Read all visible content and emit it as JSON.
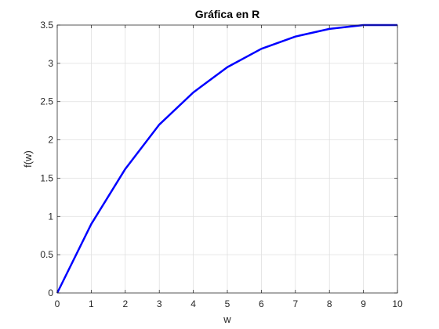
{
  "chart_data": {
    "type": "line",
    "title": "Gráfica en R",
    "xlabel": "w",
    "ylabel": "f(w)",
    "xlim": [
      0,
      10
    ],
    "ylim": [
      0,
      3.5
    ],
    "xticks": [
      0,
      1,
      2,
      3,
      4,
      5,
      6,
      7,
      8,
      9,
      10
    ],
    "yticks": [
      0,
      0.5,
      1,
      1.5,
      2,
      2.5,
      3,
      3.5
    ],
    "xtick_labels": [
      "0",
      "1",
      "2",
      "3",
      "4",
      "5",
      "6",
      "7",
      "8",
      "9",
      "10"
    ],
    "ytick_labels": [
      "0",
      "0.5",
      "1",
      "1.5",
      "2",
      "2.5",
      "3",
      "3.5"
    ],
    "grid": true,
    "series": [
      {
        "color": "#0000ff",
        "x": [
          0,
          1,
          2,
          3,
          4,
          5,
          6,
          7,
          8,
          9,
          10
        ],
        "y": [
          0,
          0.9,
          1.62,
          2.2,
          2.62,
          2.95,
          3.19,
          3.35,
          3.45,
          3.5,
          3.5
        ]
      }
    ]
  }
}
